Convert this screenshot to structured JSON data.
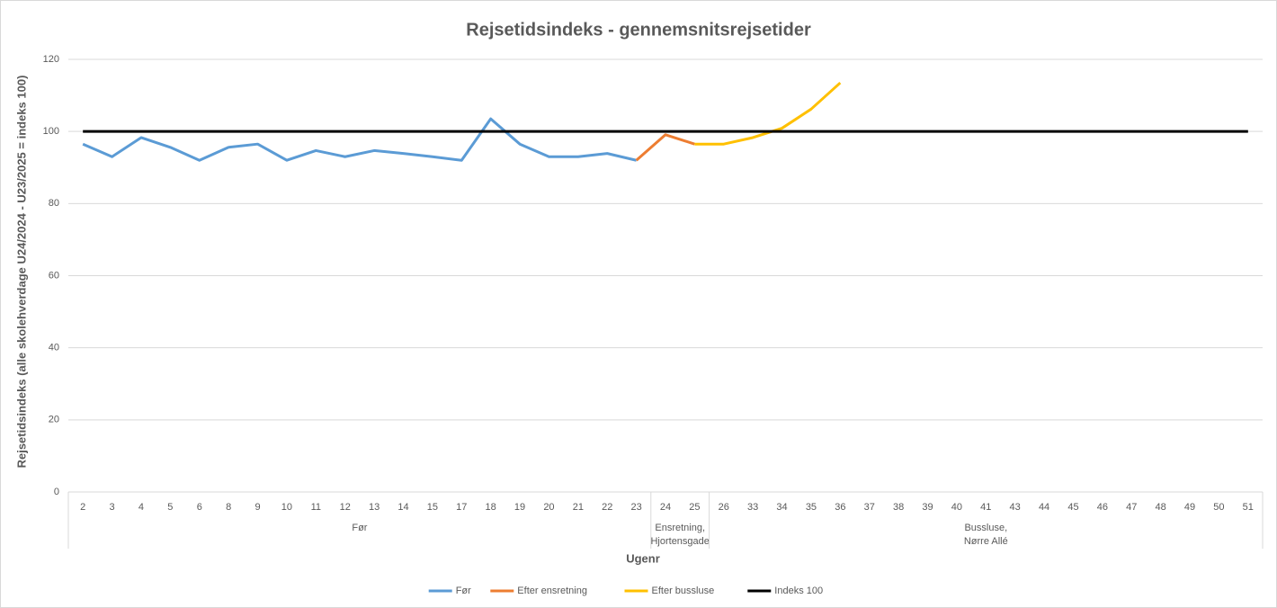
{
  "chart_data": {
    "type": "line",
    "title": "Rejsetidsindeks - gennemsnitsrejsetider",
    "x_label": "Ugenr",
    "y_label": "Rejsetidsindeks (alle skolehverdage U24/2024 - U23/2025 = indeks 100)",
    "categories": [
      "2",
      "3",
      "4",
      "5",
      "6",
      "8",
      "9",
      "10",
      "11",
      "12",
      "13",
      "14",
      "15",
      "17",
      "18",
      "19",
      "20",
      "21",
      "22",
      "23",
      "24",
      "25",
      "26",
      "33",
      "34",
      "35",
      "36",
      "37",
      "38",
      "39",
      "40",
      "41",
      "43",
      "44",
      "45",
      "46",
      "47",
      "48",
      "49",
      "50",
      "51"
    ],
    "groups": [
      {
        "lines": [
          "Før"
        ],
        "start": 0,
        "end": 19
      },
      {
        "lines": [
          "Ensretning,",
          "Hjortensgade"
        ],
        "start": 20,
        "end": 21
      },
      {
        "lines": [
          "Bussluse,",
          "Nørre Allé"
        ],
        "start": 22,
        "end": 40
      }
    ],
    "series": [
      {
        "name": "Før",
        "color": "#5b9bd5",
        "values": [
          96.5,
          93,
          98.3,
          95.6,
          92,
          95.6,
          96.5,
          92,
          94.7,
          93,
          94.7,
          93.9,
          93,
          92,
          103.5,
          96.5,
          93,
          93,
          93.9,
          92,
          null,
          null,
          null,
          null,
          null,
          null,
          null,
          null,
          null,
          null,
          null,
          null,
          null,
          null,
          null,
          null,
          null,
          null,
          null,
          null,
          null
        ]
      },
      {
        "name": "Efter ensretning",
        "color": "#ed7d31",
        "values": [
          null,
          null,
          null,
          null,
          null,
          null,
          null,
          null,
          null,
          null,
          null,
          null,
          null,
          null,
          null,
          null,
          null,
          null,
          null,
          92,
          99.1,
          96.5,
          null,
          null,
          null,
          null,
          null,
          null,
          null,
          null,
          null,
          null,
          null,
          null,
          null,
          null,
          null,
          null,
          null,
          null,
          null
        ]
      },
      {
        "name": "Efter bussluse",
        "color": "#ffc000",
        "values": [
          null,
          null,
          null,
          null,
          null,
          null,
          null,
          null,
          null,
          null,
          null,
          null,
          null,
          null,
          null,
          null,
          null,
          null,
          null,
          null,
          null,
          96.5,
          96.5,
          98.3,
          100.9,
          106.2,
          113.5,
          null,
          null,
          null,
          null,
          null,
          null,
          null,
          null,
          null,
          null,
          null,
          null,
          null,
          null
        ]
      },
      {
        "name": "Indeks 100",
        "color": "#000000",
        "values": [
          100,
          100,
          100,
          100,
          100,
          100,
          100,
          100,
          100,
          100,
          100,
          100,
          100,
          100,
          100,
          100,
          100,
          100,
          100,
          100,
          100,
          100,
          100,
          100,
          100,
          100,
          100,
          100,
          100,
          100,
          100,
          100,
          100,
          100,
          100,
          100,
          100,
          100,
          100,
          100,
          100
        ]
      }
    ],
    "ylim": [
      0,
      120
    ],
    "yticks": [
      0,
      20,
      40,
      60,
      80,
      100,
      120
    ],
    "grid": true,
    "legend": "bottom"
  }
}
